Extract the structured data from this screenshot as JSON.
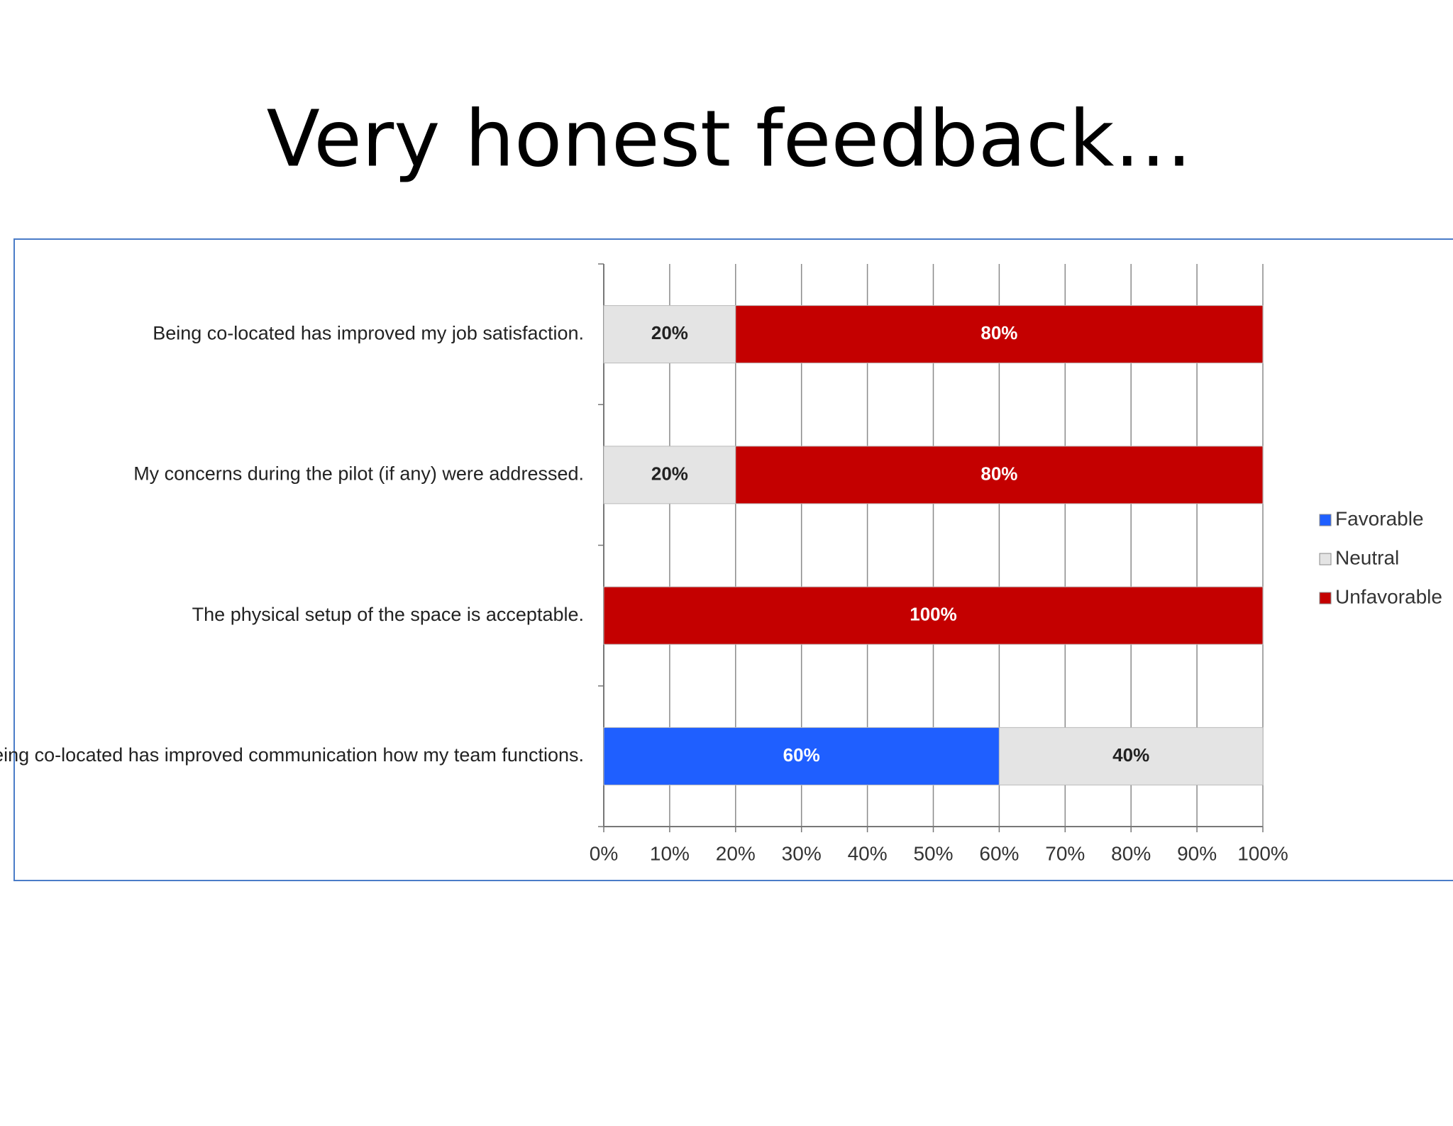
{
  "chart_data": {
    "type": "stacked-bar-horizontal",
    "title": "Very honest feedback…",
    "categories": [
      "Being co-located has improved my job satisfaction.",
      "My concerns during the pilot (if any) were addressed.",
      "The physical setup of the space is acceptable.",
      "Being co-located has improved communication how my team functions."
    ],
    "series": [
      {
        "name": "Favorable",
        "color": "#1f5fff",
        "values": [
          0,
          0,
          0,
          60
        ],
        "value_labels": [
          null,
          null,
          null,
          "60%"
        ]
      },
      {
        "name": "Neutral",
        "color": "#e4e4e4",
        "values": [
          20,
          20,
          0,
          40
        ],
        "value_labels": [
          "20%",
          "20%",
          null,
          "40%"
        ]
      },
      {
        "name": "Unfavorable",
        "color": "#c40000",
        "values": [
          80,
          80,
          100,
          0
        ],
        "value_labels": [
          "80%",
          "80%",
          "100%",
          null
        ]
      }
    ],
    "xlim": [
      0,
      100
    ],
    "xticks": [
      {
        "value": 0,
        "label": "0%"
      },
      {
        "value": 10,
        "label": "10%"
      },
      {
        "value": 20,
        "label": "20%"
      },
      {
        "value": 30,
        "label": "30%"
      },
      {
        "value": 40,
        "label": "40%"
      },
      {
        "value": 50,
        "label": "50%"
      },
      {
        "value": 60,
        "label": "60%"
      },
      {
        "value": 70,
        "label": "70%"
      },
      {
        "value": 80,
        "label": "80%"
      },
      {
        "value": 90,
        "label": "90%"
      },
      {
        "value": 100,
        "label": "100%"
      }
    ],
    "grid": true,
    "legend": "right"
  }
}
